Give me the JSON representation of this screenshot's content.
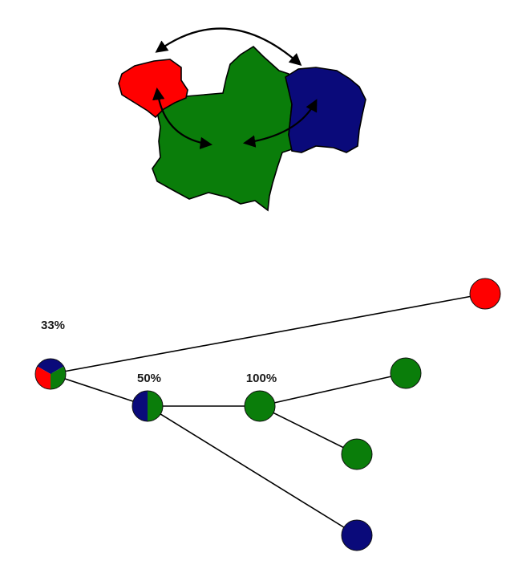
{
  "colors": {
    "red": "#ff0000",
    "green": "#0a7d0a",
    "blue": "#0a0a7a",
    "line": "#000000"
  },
  "map": {
    "regions": [
      {
        "name": "red-region",
        "color": "red"
      },
      {
        "name": "green-region",
        "color": "green"
      },
      {
        "name": "blue-region",
        "color": "blue"
      }
    ],
    "arrows": [
      {
        "name": "arrow-red-blue",
        "from": "red",
        "to": "blue"
      },
      {
        "name": "arrow-red-green",
        "from": "red",
        "to": "green"
      },
      {
        "name": "arrow-blue-green",
        "from": "blue",
        "to": "green"
      }
    ]
  },
  "tree": {
    "nodes": [
      {
        "id": "root",
        "colors": [
          "blue",
          "green",
          "red"
        ],
        "label": "33%"
      },
      {
        "id": "mid",
        "colors": [
          "blue",
          "green"
        ],
        "label": "50%"
      },
      {
        "id": "green-hub",
        "colors": [
          "green"
        ],
        "label": "100%"
      },
      {
        "id": "leaf-red",
        "colors": [
          "red"
        ],
        "label": ""
      },
      {
        "id": "leaf-green-1",
        "colors": [
          "green"
        ],
        "label": ""
      },
      {
        "id": "leaf-green-2",
        "colors": [
          "green"
        ],
        "label": ""
      },
      {
        "id": "leaf-blue",
        "colors": [
          "blue"
        ],
        "label": ""
      }
    ],
    "edges": [
      [
        "root",
        "leaf-red"
      ],
      [
        "root",
        "mid"
      ],
      [
        "mid",
        "green-hub"
      ],
      [
        "mid",
        "leaf-blue"
      ],
      [
        "green-hub",
        "leaf-green-1"
      ],
      [
        "green-hub",
        "leaf-green-2"
      ]
    ]
  }
}
